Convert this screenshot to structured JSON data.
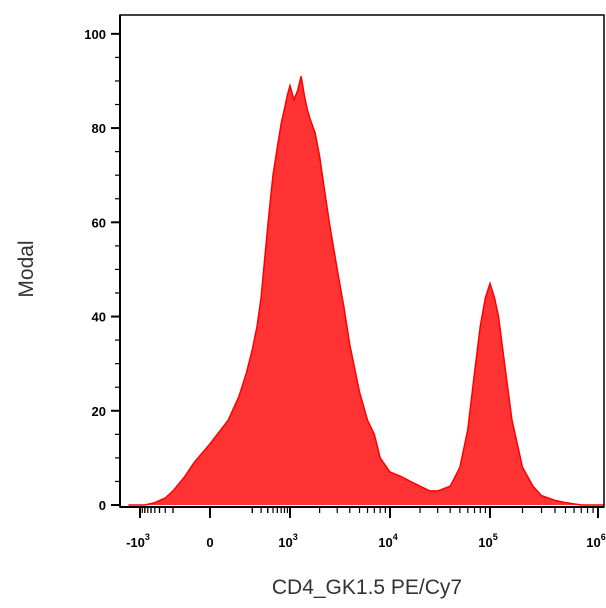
{
  "chart_data": {
    "type": "area",
    "title": "",
    "xlabel": "CD4_GK1.5 PE/Cy7",
    "ylabel": "Modal",
    "x_scale": "biexponential",
    "ylim": [
      0,
      104
    ],
    "grid": false,
    "legend": "none",
    "fill_color": "#ff3333",
    "stroke_color": "#ff0000",
    "x_ticks": [
      {
        "base": "-10",
        "exp": "3",
        "value": -1000
      },
      {
        "base": "0",
        "exp": "",
        "value": 0
      },
      {
        "base": "10",
        "exp": "3",
        "value": 1000
      },
      {
        "base": "10",
        "exp": "4",
        "value": 10000
      },
      {
        "base": "10",
        "exp": "5",
        "value": 100000
      },
      {
        "base": "10",
        "exp": "6",
        "value": 1000000
      }
    ],
    "y_ticks": [
      {
        "label": "0",
        "value": 0
      },
      {
        "label": "20",
        "value": 20
      },
      {
        "label": "40",
        "value": 40
      },
      {
        "label": "60",
        "value": 60
      },
      {
        "label": "80",
        "value": 80
      },
      {
        "label": "100",
        "value": 100
      }
    ],
    "series": [
      {
        "x": [
          -1500,
          -800,
          -500,
          -300,
          -200,
          -100,
          -50,
          0,
          50,
          100,
          150,
          200,
          250,
          300,
          350,
          400,
          450,
          500,
          600,
          700,
          800,
          900,
          1000,
          1100,
          1200,
          1300,
          1400,
          1500,
          1600,
          1800,
          2000,
          2200,
          2500,
          3000,
          3500,
          4000,
          5000,
          6000,
          7000,
          8000,
          10000,
          13000,
          16000,
          20000,
          25000,
          30000,
          40000,
          50000,
          60000,
          70000,
          80000,
          90000,
          100000,
          110000,
          120000,
          140000,
          160000,
          200000,
          250000,
          300000,
          400000,
          500000,
          700000,
          1000000,
          1500000
        ],
        "y": [
          0,
          0,
          0.5,
          1.5,
          3,
          6,
          9,
          13,
          18,
          23,
          28,
          33,
          38,
          44,
          52,
          59,
          65,
          70,
          76,
          81,
          84,
          87,
          89,
          86,
          88,
          91,
          87,
          84,
          82,
          79,
          74,
          68,
          60,
          50,
          42,
          34,
          24,
          18,
          15,
          10,
          7,
          6,
          5,
          4,
          3,
          3,
          4,
          8,
          16,
          28,
          38,
          44,
          47,
          44,
          40,
          28,
          18,
          8,
          4,
          2,
          1,
          0.5,
          0,
          0,
          0
        ]
      }
    ]
  }
}
